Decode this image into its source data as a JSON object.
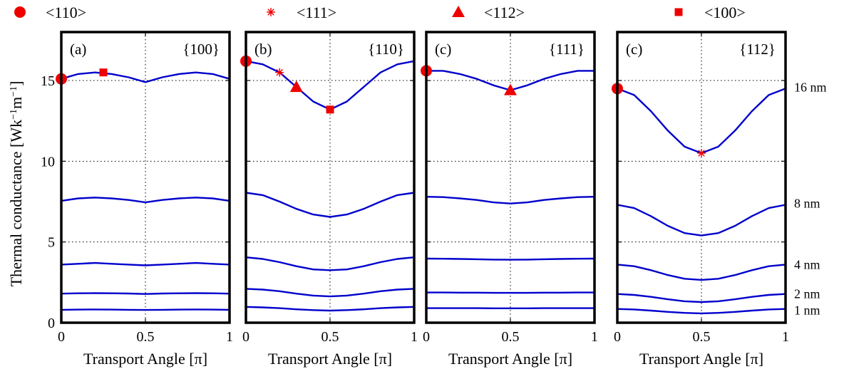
{
  "legend": [
    {
      "label": "<110>",
      "marker": "circle"
    },
    {
      "label": "<111>",
      "marker": "asterisk"
    },
    {
      "label": "<112>",
      "marker": "triangle"
    },
    {
      "label": "<100>",
      "marker": "square"
    }
  ],
  "ylabel_main": "Thermal conductance [Wk",
  "ylabel_sup1": "−1",
  "ylabel_mid": "m",
  "ylabel_sup2": "−1",
  "ylabel_end": "]",
  "xlabel": "Transport Angle [π]",
  "size_labels": [
    "16 nm",
    "8 nm",
    "4 nm",
    "2 nm",
    "1 nm"
  ],
  "colors": {
    "line": "#0000cc",
    "marker": "#ee0000",
    "frame": "#000000",
    "grid": "#000000"
  },
  "chart_data": [
    {
      "type": "line",
      "panel_label": "(a)",
      "plane": "{100}",
      "xlim": [
        0,
        1
      ],
      "ylim": [
        0,
        18
      ],
      "xticks": [
        0,
        0.5,
        1
      ],
      "yticks": [
        0,
        5,
        10,
        15
      ],
      "x": [
        0,
        0.1,
        0.2,
        0.3,
        0.4,
        0.5,
        0.6,
        0.7,
        0.8,
        0.9,
        1
      ],
      "series": [
        {
          "values": [
            15.1,
            15.4,
            15.5,
            15.4,
            15.2,
            14.9,
            15.2,
            15.4,
            15.5,
            15.4,
            15.1
          ]
        },
        {
          "values": [
            7.55,
            7.7,
            7.75,
            7.7,
            7.6,
            7.45,
            7.6,
            7.7,
            7.75,
            7.7,
            7.55
          ]
        },
        {
          "values": [
            3.6,
            3.65,
            3.7,
            3.65,
            3.6,
            3.55,
            3.6,
            3.65,
            3.7,
            3.65,
            3.6
          ]
        },
        {
          "values": [
            1.8,
            1.82,
            1.83,
            1.82,
            1.81,
            1.78,
            1.81,
            1.82,
            1.83,
            1.82,
            1.8
          ]
        },
        {
          "values": [
            0.8,
            0.81,
            0.82,
            0.81,
            0.8,
            0.79,
            0.8,
            0.81,
            0.82,
            0.81,
            0.8
          ]
        }
      ],
      "markers": [
        {
          "type": "circle",
          "x": 0,
          "y": 15.1
        },
        {
          "type": "square",
          "x": 0.25,
          "y": 15.5
        }
      ]
    },
    {
      "type": "line",
      "panel_label": "(b)",
      "plane": "{110}",
      "xlim": [
        0,
        1
      ],
      "ylim": [
        0,
        18
      ],
      "xticks": [
        0,
        0.5,
        1
      ],
      "yticks": [
        0,
        5,
        10,
        15
      ],
      "x": [
        0,
        0.1,
        0.2,
        0.3,
        0.4,
        0.5,
        0.6,
        0.7,
        0.8,
        0.9,
        1
      ],
      "series": [
        {
          "values": [
            16.2,
            16.0,
            15.5,
            14.6,
            13.7,
            13.2,
            13.7,
            14.6,
            15.5,
            16.0,
            16.2
          ]
        },
        {
          "values": [
            8.05,
            7.9,
            7.5,
            7.05,
            6.7,
            6.55,
            6.7,
            7.05,
            7.5,
            7.9,
            8.05
          ]
        },
        {
          "values": [
            4.05,
            3.95,
            3.75,
            3.5,
            3.3,
            3.25,
            3.3,
            3.5,
            3.75,
            3.95,
            4.05
          ]
        },
        {
          "values": [
            2.1,
            2.05,
            1.95,
            1.8,
            1.68,
            1.63,
            1.68,
            1.8,
            1.95,
            2.05,
            2.1
          ]
        },
        {
          "values": [
            0.98,
            0.95,
            0.9,
            0.83,
            0.78,
            0.75,
            0.78,
            0.83,
            0.9,
            0.95,
            0.98
          ]
        }
      ],
      "markers": [
        {
          "type": "circle",
          "x": 0,
          "y": 16.2
        },
        {
          "type": "asterisk",
          "x": 0.2,
          "y": 15.5
        },
        {
          "type": "triangle",
          "x": 0.3,
          "y": 14.6
        },
        {
          "type": "square",
          "x": 0.5,
          "y": 13.2
        }
      ]
    },
    {
      "type": "line",
      "panel_label": "(c)",
      "plane": "{111}",
      "xlim": [
        0,
        1
      ],
      "ylim": [
        0,
        18
      ],
      "xticks": [
        0,
        0.5,
        1
      ],
      "yticks": [
        0,
        5,
        10,
        15
      ],
      "x": [
        0,
        0.1,
        0.2,
        0.3,
        0.4,
        0.5,
        0.6,
        0.7,
        0.8,
        0.9,
        1
      ],
      "series": [
        {
          "values": [
            15.6,
            15.6,
            15.4,
            15.1,
            14.7,
            14.4,
            14.7,
            15.1,
            15.4,
            15.6,
            15.6
          ]
        },
        {
          "values": [
            7.8,
            7.78,
            7.7,
            7.6,
            7.45,
            7.38,
            7.45,
            7.6,
            7.7,
            7.78,
            7.8
          ]
        },
        {
          "values": [
            3.97,
            3.96,
            3.95,
            3.93,
            3.91,
            3.9,
            3.91,
            3.93,
            3.95,
            3.96,
            3.97
          ]
        },
        {
          "values": [
            1.87,
            1.87,
            1.86,
            1.86,
            1.85,
            1.85,
            1.85,
            1.86,
            1.86,
            1.87,
            1.87
          ]
        },
        {
          "values": [
            0.9,
            0.9,
            0.9,
            0.9,
            0.89,
            0.89,
            0.89,
            0.9,
            0.9,
            0.9,
            0.9
          ]
        }
      ],
      "markers": [
        {
          "type": "circle",
          "x": 0,
          "y": 15.6
        },
        {
          "type": "triangle",
          "x": 0.5,
          "y": 14.4
        }
      ]
    },
    {
      "type": "line",
      "panel_label": "(c)",
      "plane": "{112}",
      "xlim": [
        0,
        1
      ],
      "ylim": [
        0,
        18
      ],
      "xticks": [
        0,
        0.5,
        1
      ],
      "yticks": [
        0,
        5,
        10,
        15
      ],
      "x": [
        0,
        0.1,
        0.2,
        0.3,
        0.4,
        0.5,
        0.6,
        0.7,
        0.8,
        0.9,
        1
      ],
      "series": [
        {
          "values": [
            14.5,
            14.1,
            13.1,
            11.9,
            10.9,
            10.5,
            10.9,
            11.9,
            13.1,
            14.1,
            14.5
          ]
        },
        {
          "values": [
            7.3,
            7.1,
            6.6,
            6.0,
            5.55,
            5.4,
            5.55,
            6.0,
            6.6,
            7.1,
            7.3
          ]
        },
        {
          "values": [
            3.6,
            3.5,
            3.25,
            2.95,
            2.72,
            2.65,
            2.72,
            2.95,
            3.25,
            3.5,
            3.6
          ]
        },
        {
          "values": [
            1.78,
            1.72,
            1.6,
            1.45,
            1.33,
            1.28,
            1.33,
            1.45,
            1.6,
            1.72,
            1.78
          ]
        },
        {
          "values": [
            0.85,
            0.82,
            0.75,
            0.67,
            0.61,
            0.58,
            0.61,
            0.67,
            0.75,
            0.82,
            0.85
          ]
        }
      ],
      "markers": [
        {
          "type": "circle",
          "x": 0,
          "y": 14.5
        },
        {
          "type": "asterisk",
          "x": 0.5,
          "y": 10.5
        }
      ]
    }
  ]
}
